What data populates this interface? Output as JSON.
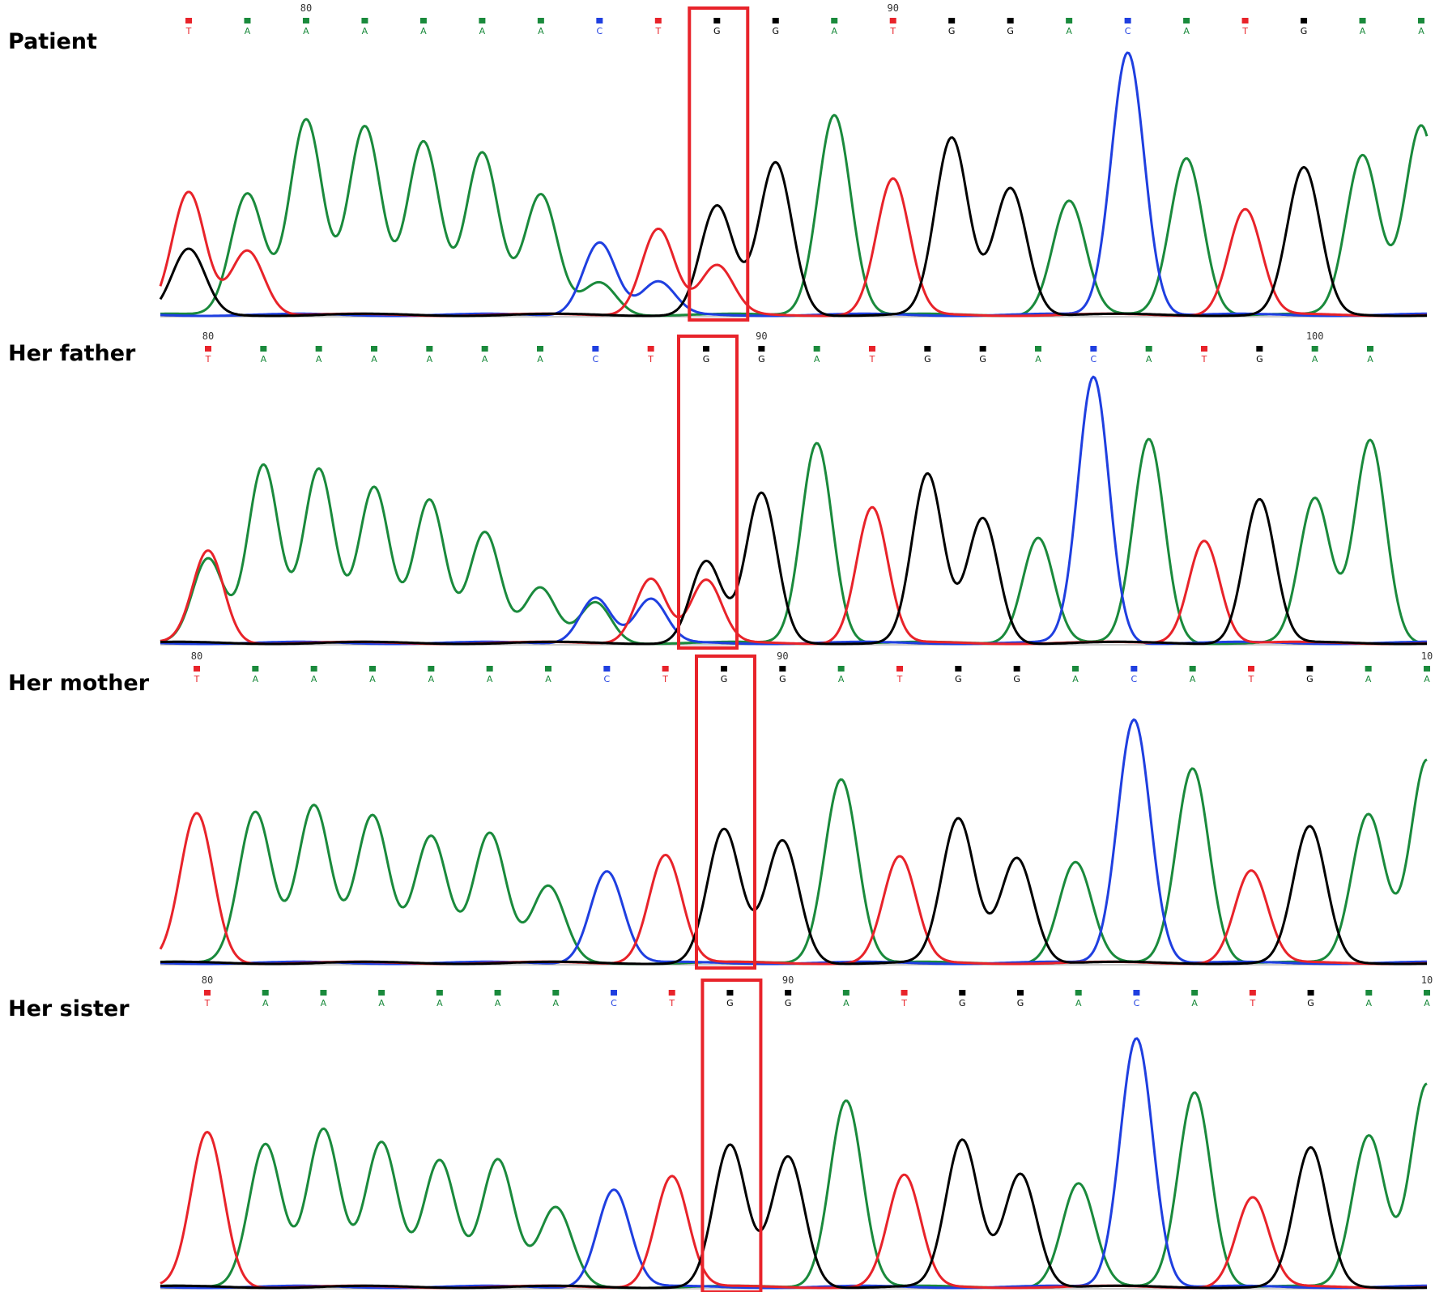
{
  "colors": {
    "A": "#1a8a3c",
    "C": "#1f3fe0",
    "G": "#000000",
    "T": "#e8232a",
    "highlight": "#e8232a"
  },
  "panels": [
    {
      "label": "Patient",
      "position_labels": [
        "80",
        "90"
      ],
      "bases": [
        "T",
        "A",
        "A",
        "A",
        "A",
        "A",
        "A",
        "C",
        "T",
        "G",
        "G",
        "A",
        "T",
        "G",
        "G",
        "A",
        "C",
        "A",
        "T",
        "G",
        "A",
        "A"
      ],
      "highlight_index": 9,
      "peak_heights": [
        0.45,
        0.45,
        0.72,
        0.69,
        0.64,
        0.6,
        0.44,
        0.27,
        0.32,
        0.4,
        0.56,
        0.74,
        0.5,
        0.65,
        0.47,
        0.42,
        0.97,
        0.58,
        0.39,
        0.54,
        0.59,
        0.7
      ],
      "secondary": [
        {
          "index": 0,
          "base": "G",
          "height": 0.24
        },
        {
          "index": 1,
          "base": "T",
          "height": 0.24
        },
        {
          "index": 7,
          "base": "A",
          "height": 0.12
        },
        {
          "index": 8,
          "base": "C",
          "height": 0.12
        },
        {
          "index": 9,
          "base": "T",
          "height": 0.18
        }
      ]
    },
    {
      "label": "Her father",
      "position_labels": [
        "80",
        "90",
        "100"
      ],
      "bases": [
        "T",
        "A",
        "A",
        "A",
        "A",
        "A",
        "A",
        "C",
        "T",
        "G",
        "G",
        "A",
        "T",
        "G",
        "G",
        "A",
        "C",
        "A",
        "T",
        "G",
        "A",
        "A"
      ],
      "highlight_index": 9,
      "peak_heights": [
        0.34,
        0.66,
        0.64,
        0.57,
        0.53,
        0.41,
        0.2,
        0.17,
        0.24,
        0.3,
        0.55,
        0.74,
        0.5,
        0.62,
        0.46,
        0.39,
        0.98,
        0.75,
        0.38,
        0.53,
        0.53,
        0.75
      ],
      "secondary": [
        {
          "index": 0,
          "base": "A",
          "height": 0.31
        },
        {
          "index": 7,
          "base": "A",
          "height": 0.15
        },
        {
          "index": 8,
          "base": "C",
          "height": 0.16
        },
        {
          "index": 9,
          "base": "T",
          "height": 0.23
        }
      ]
    },
    {
      "label": "Her mother",
      "position_labels": [
        "80",
        "90",
        "10"
      ],
      "bases": [
        "T",
        "A",
        "A",
        "A",
        "A",
        "A",
        "A",
        "C",
        "T",
        "G",
        "G",
        "A",
        "T",
        "G",
        "G",
        "A",
        "C",
        "A",
        "T",
        "G",
        "A",
        "A"
      ],
      "highlight_index": 9,
      "peak_heights": [
        0.55,
        0.56,
        0.58,
        0.54,
        0.47,
        0.48,
        0.28,
        0.34,
        0.4,
        0.49,
        0.45,
        0.68,
        0.39,
        0.53,
        0.39,
        0.37,
        0.9,
        0.72,
        0.34,
        0.5,
        0.55,
        0.75
      ],
      "secondary": []
    },
    {
      "label": "Her sister",
      "position_labels": [
        "80",
        "90",
        "10"
      ],
      "bases": [
        "T",
        "A",
        "A",
        "A",
        "A",
        "A",
        "A",
        "C",
        "T",
        "G",
        "G",
        "A",
        "T",
        "G",
        "G",
        "A",
        "C",
        "A",
        "T",
        "G",
        "A",
        "A"
      ],
      "highlight_index": 9,
      "peak_heights": [
        0.57,
        0.53,
        0.58,
        0.53,
        0.47,
        0.47,
        0.29,
        0.36,
        0.41,
        0.52,
        0.48,
        0.69,
        0.41,
        0.54,
        0.42,
        0.38,
        0.92,
        0.72,
        0.33,
        0.51,
        0.56,
        0.75
      ],
      "secondary": []
    }
  ]
}
